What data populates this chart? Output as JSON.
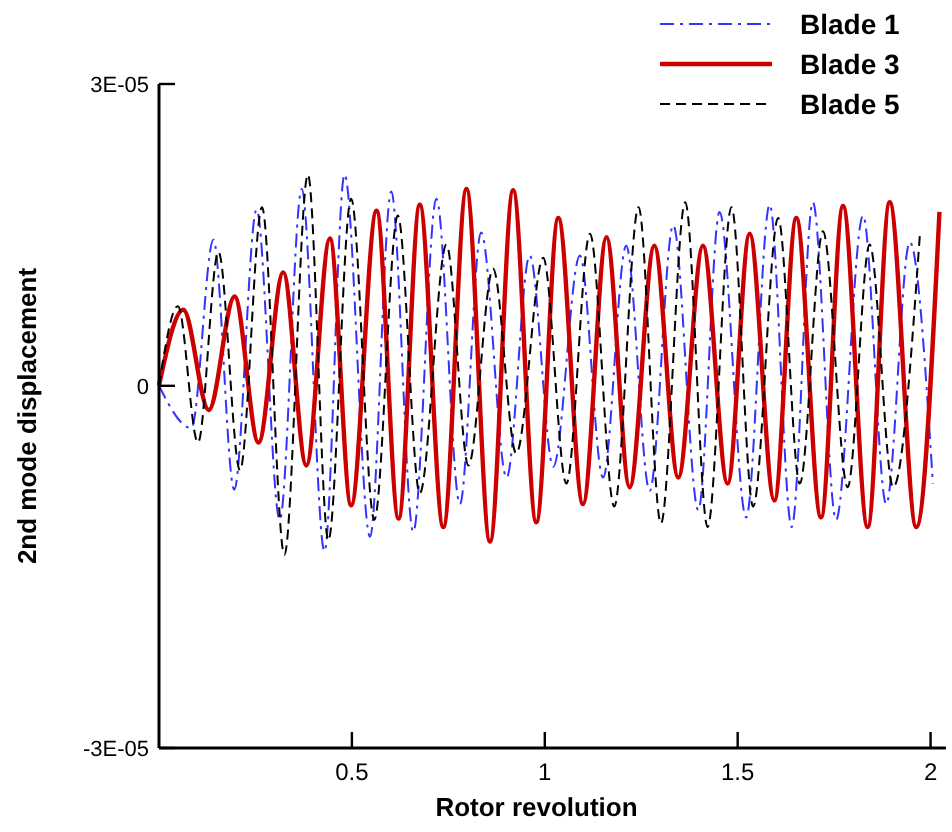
{
  "chart_data": {
    "type": "line",
    "xlabel": "Rotor revolution",
    "ylabel": "2nd mode displacement",
    "xlim": [
      0,
      2.04
    ],
    "xticks": [
      0.5,
      1,
      1.5,
      2
    ],
    "ylim": [
      -3e-05,
      2.5e-05
    ],
    "yticks": [
      {
        "value": -3e-05,
        "label": "-3E-05"
      },
      {
        "value": 0,
        "label": "0"
      },
      {
        "value": 2.5e-05,
        "label": "3E-05"
      }
    ],
    "grid": false,
    "legend": "top right",
    "marker": "none",
    "series": [
      {
        "name": "Blade 1",
        "color": "#3333ff",
        "line_style": "dashdot",
        "x": [
          0,
          0.084,
          0.141,
          0.195,
          0.253,
          0.313,
          0.37,
          0.429,
          0.481,
          0.547,
          0.602,
          0.659,
          0.719,
          0.78,
          0.835,
          0.901,
          0.961,
          1.022,
          1.091,
          1.151,
          1.211,
          1.272,
          1.333,
          1.398,
          1.453,
          1.522,
          1.583,
          1.64,
          1.695,
          1.755,
          1.825,
          1.885,
          1.946,
          2.006
        ],
        "values": [
          0,
          -3.5e-06,
          1.21e-05,
          -8.6e-06,
          1.46e-05,
          -1.11e-05,
          1.63e-05,
          -1.37e-05,
          1.75e-05,
          -1.25e-05,
          1.61e-05,
          -1.21e-05,
          1.55e-05,
          -9.8e-06,
          1.27e-05,
          -7.6e-06,
          1.08e-05,
          -6.7e-06,
          1.08e-05,
          -7.6e-06,
          1.16e-05,
          -8.7e-06,
          1.33e-05,
          -1.03e-05,
          1.44e-05,
          -1.09e-05,
          1.5e-05,
          -1.17e-05,
          1.52e-05,
          -1.11e-05,
          1.41e-05,
          -9.8e-06,
          1.19e-05,
          -8.1e-06
        ]
      },
      {
        "name": "Blade 3",
        "color": "#cc0000",
        "line_style": "solid",
        "x": [
          0,
          0.063,
          0.129,
          0.196,
          0.258,
          0.322,
          0.382,
          0.443,
          0.498,
          0.564,
          0.621,
          0.676,
          0.737,
          0.797,
          0.858,
          0.918,
          0.978,
          1.035,
          1.099,
          1.16,
          1.22,
          1.284,
          1.346,
          1.41,
          1.474,
          1.531,
          1.595,
          1.652,
          1.716,
          1.773,
          1.837,
          1.894,
          1.963,
          2.023
        ],
        "values": [
          0,
          6.3e-06,
          -2e-06,
          7.4e-06,
          -4.7e-06,
          9.4e-06,
          -6.6e-06,
          1.22e-05,
          -9.9e-06,
          1.45e-05,
          -1.1e-05,
          1.5e-05,
          -1.17e-05,
          1.63e-05,
          -1.29e-05,
          1.62e-05,
          -1.13e-05,
          1.39e-05,
          -9.8e-06,
          1.23e-05,
          -8.4e-06,
          1.16e-05,
          -7.6e-06,
          1.16e-05,
          -8.1e-06,
          1.26e-05,
          -9.5e-06,
          1.39e-05,
          -1.09e-05,
          1.49e-05,
          -1.17e-05,
          1.52e-05,
          -1.17e-05,
          1.44e-05
        ]
      },
      {
        "name": "Blade 5",
        "color": "#000000",
        "line_style": "dashed",
        "x": [
          0,
          0.049,
          0.101,
          0.154,
          0.21,
          0.267,
          0.325,
          0.386,
          0.439,
          0.498,
          0.558,
          0.619,
          0.676,
          0.745,
          0.802,
          0.866,
          0.926,
          0.996,
          1.056,
          1.117,
          1.18,
          1.243,
          1.301,
          1.364,
          1.422,
          1.484,
          1.54,
          1.605,
          1.661,
          1.721,
          1.785,
          1.842,
          1.903,
          1.972
        ],
        "values": [
          0,
          6.6e-06,
          -4.7e-06,
          1.11e-05,
          -7e-06,
          1.48e-05,
          -1.4e-05,
          1.75e-05,
          -1.28e-05,
          1.55e-05,
          -1.11e-05,
          1.41e-05,
          -8.9e-06,
          1.17e-05,
          -6.6e-06,
          9.7e-06,
          -5.6e-06,
          1.06e-05,
          -8.1e-06,
          1.26e-05,
          -1e-05,
          1.48e-05,
          -1.14e-05,
          1.52e-05,
          -1.17e-05,
          1.48e-05,
          -1e-05,
          1.39e-05,
          -8.1e-06,
          1.28e-05,
          -8.4e-06,
          1.17e-05,
          -8.4e-06,
          1.24e-05
        ]
      }
    ]
  }
}
